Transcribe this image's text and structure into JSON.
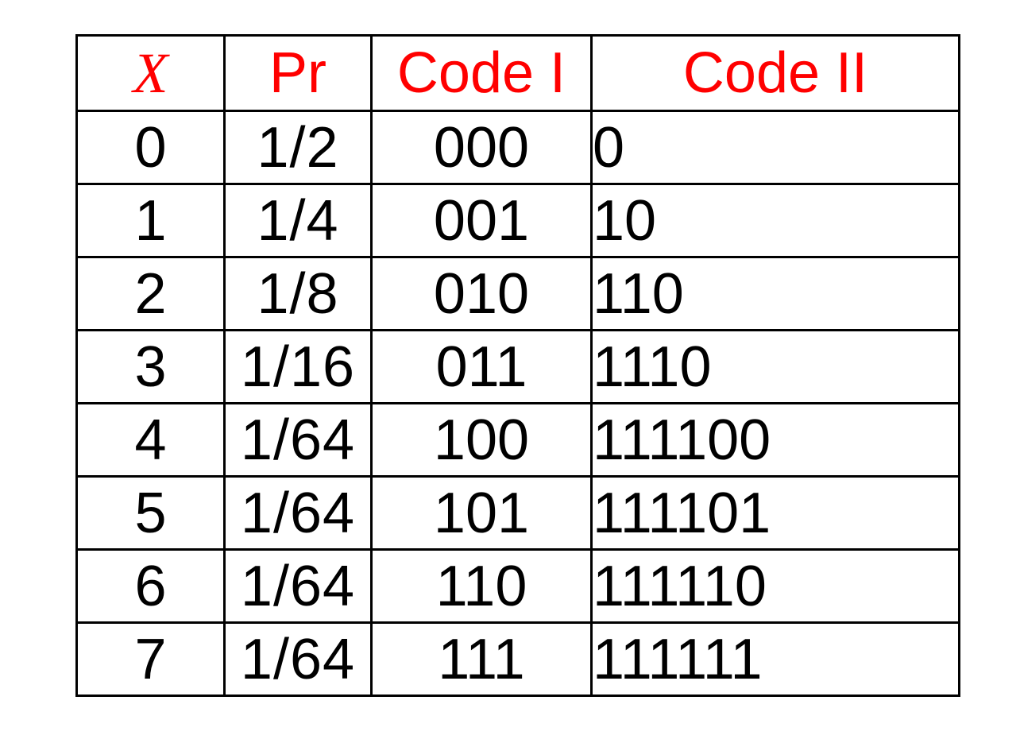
{
  "table": {
    "headers": {
      "x": "X",
      "pr": "Pr",
      "code1": "Code I",
      "code2": "Code II"
    },
    "header_color": "#ff0000",
    "rows": [
      {
        "x": "0",
        "pr": "1/2",
        "code1": "000",
        "code2": "0"
      },
      {
        "x": "1",
        "pr": "1/4",
        "code1": "001",
        "code2": "10"
      },
      {
        "x": "2",
        "pr": "1/8",
        "code1": "010",
        "code2": "110"
      },
      {
        "x": "3",
        "pr": "1/16",
        "code1": "011",
        "code2": "1110"
      },
      {
        "x": "4",
        "pr": "1/64",
        "code1": "100",
        "code2": "111100"
      },
      {
        "x": "5",
        "pr": "1/64",
        "code1": "101",
        "code2": "111101"
      },
      {
        "x": "6",
        "pr": "1/64",
        "code1": "110",
        "code2": "111110"
      },
      {
        "x": "7",
        "pr": "1/64",
        "code1": "111",
        "code2": "111111"
      }
    ]
  }
}
